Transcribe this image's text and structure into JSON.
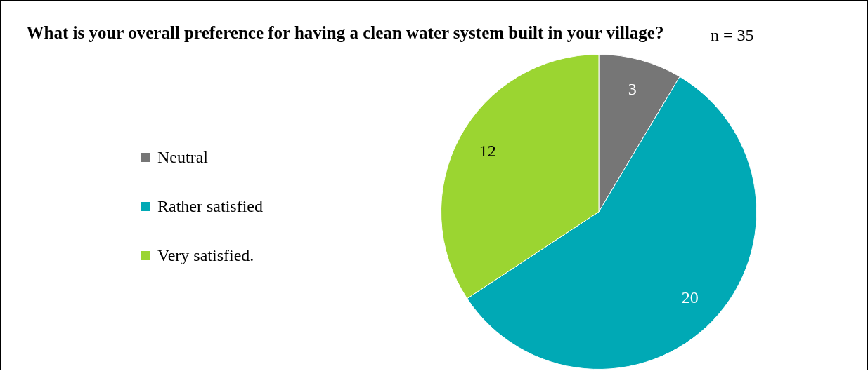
{
  "chart_data": {
    "type": "pie",
    "title": "What is your overall preference for having a clean water system built in your village?",
    "categories": [
      "Neutral",
      "Rather satisfied",
      "Very satisfied."
    ],
    "values": [
      3,
      20,
      12
    ],
    "colors": [
      "#767676",
      "#00a9b5",
      "#9bd531"
    ],
    "data_labels": true,
    "legend": "left",
    "annotations": [
      "n = 35"
    ]
  }
}
